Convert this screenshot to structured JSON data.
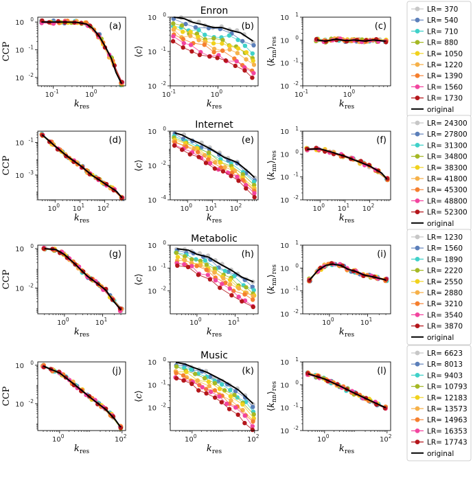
{
  "series_colors": [
    "#c7c7c7",
    "#5b7fba",
    "#3fd1c9",
    "#a5b825",
    "#f1d21d",
    "#f6b14a",
    "#f57f2e",
    "#f2459f",
    "#b4161b"
  ],
  "original_color": "#000000",
  "original_label": "original",
  "legends": [
    {
      "row": 0,
      "entries": [
        "LR= 370",
        "LR= 540",
        "LR= 710",
        "LR= 880",
        "LR= 1050",
        "LR= 1220",
        "LR= 1390",
        "LR= 1560",
        "LR= 1730"
      ]
    },
    {
      "row": 1,
      "entries": [
        "LR= 24300",
        "LR= 27800",
        "LR= 31300",
        "LR= 34800",
        "LR= 38300",
        "LR= 41800",
        "LR= 45300",
        "LR= 48800",
        "LR= 52300"
      ]
    },
    {
      "row": 2,
      "entries": [
        "LR= 1230",
        "LR= 1560",
        "LR= 1890",
        "LR= 2220",
        "LR= 2550",
        "LR= 2880",
        "LR= 3210",
        "LR= 3540",
        "LR= 3870"
      ]
    },
    {
      "row": 3,
      "entries": [
        "LR= 6623",
        "LR= 8013",
        "LR= 9403",
        "LR= 10793",
        "LR= 12183",
        "LR= 13573",
        "LR= 14963",
        "LR= 16353",
        "LR= 17743"
      ]
    }
  ],
  "chart_data": [
    {
      "panel": "(a)",
      "row": 0,
      "col": 0,
      "type": "scatter",
      "ylabel": "CCP",
      "xlabel": "k_res",
      "xscale": "log",
      "yscale": "log",
      "xlim": [
        0.04,
        7
      ],
      "ylim": [
        0.005,
        1.5
      ],
      "xticks": [
        {
          "v": 0.1,
          "label": "10^-1"
        },
        {
          "v": 1,
          "label": "10^0"
        }
      ],
      "yticks": [
        {
          "v": 0.01,
          "label": "10^-2"
        },
        {
          "v": 0.1,
          "label": "10^-1"
        },
        {
          "v": 1,
          "label": "10^0"
        }
      ],
      "original": {
        "x": [
          0.05,
          0.1,
          0.2,
          0.4,
          0.7,
          1.0,
          1.5,
          2,
          3,
          4,
          5.5
        ],
        "y": [
          1,
          1,
          1,
          0.97,
          0.85,
          0.6,
          0.3,
          0.15,
          0.05,
          0.015,
          0.006
        ]
      }
    },
    {
      "panel": "(b)",
      "row": 0,
      "col": 1,
      "title": "Enron",
      "type": "scatter",
      "ylabel": "⟨c⟩",
      "xlabel": "k_res",
      "xscale": "log",
      "yscale": "log",
      "xlim": [
        0.1,
        7
      ],
      "ylim": [
        0.01,
        1
      ],
      "xticks": [
        {
          "v": 0.1,
          "label": "10^-1"
        },
        {
          "v": 1,
          "label": "10^0"
        }
      ],
      "yticks": [
        {
          "v": 0.01,
          "label": "10^-2"
        },
        {
          "v": 0.1,
          "label": "10^-1"
        },
        {
          "v": 1,
          "label": "10^0"
        }
      ],
      "original": {
        "x": [
          0.12,
          0.2,
          0.3,
          0.5,
          0.8,
          1.2,
          2,
          3,
          5.5
        ],
        "y": [
          1,
          0.9,
          0.7,
          0.6,
          0.5,
          0.5,
          0.4,
          0.35,
          0.2
        ]
      }
    },
    {
      "panel": "(c)",
      "row": 0,
      "col": 2,
      "type": "scatter",
      "ylabel": "⟨k_nn⟩_res",
      "xlabel": "k_res",
      "xscale": "log",
      "yscale": "log",
      "xlim": [
        0.1,
        7
      ],
      "ylim": [
        0.01,
        10
      ],
      "xticks": [
        {
          "v": 0.1,
          "label": "10^-1"
        },
        {
          "v": 1,
          "label": "10^0"
        }
      ],
      "yticks": [
        {
          "v": 0.01,
          "label": "10^-2"
        },
        {
          "v": 0.1,
          "label": "10^-1"
        },
        {
          "v": 1,
          "label": "10^0"
        },
        {
          "v": 10,
          "label": "10^1"
        }
      ],
      "original": {
        "x": [
          0.2,
          0.3,
          0.5,
          0.8,
          1.2,
          2,
          3,
          5.5
        ],
        "y": [
          1,
          0.9,
          1.1,
          0.95,
          1.0,
          0.9,
          1.0,
          0.9
        ]
      }
    },
    {
      "panel": "(d)",
      "row": 1,
      "col": 0,
      "type": "scatter",
      "ylabel": "CCP",
      "xlabel": "k_res",
      "xscale": "log",
      "yscale": "log",
      "xlim": [
        0.2,
        700
      ],
      "ylim": [
        3e-05,
        0.5
      ],
      "xticks": [
        {
          "v": 1,
          "label": "10^0"
        },
        {
          "v": 10,
          "label": "10^1"
        },
        {
          "v": 100,
          "label": "10^2"
        }
      ],
      "yticks": [
        {
          "v": 0.001,
          "label": "10^-3"
        },
        {
          "v": 0.1,
          "label": "10^-1"
        }
      ],
      "original": {
        "x": [
          0.3,
          1,
          3,
          10,
          30,
          100,
          300,
          500
        ],
        "y": [
          0.3,
          0.06,
          0.015,
          0.004,
          0.001,
          0.0003,
          0.0001,
          4e-05
        ]
      }
    },
    {
      "panel": "(e)",
      "row": 1,
      "col": 1,
      "title": "Internet",
      "type": "scatter",
      "ylabel": "⟨c⟩",
      "xlabel": "k_res",
      "xscale": "log",
      "yscale": "log",
      "xlim": [
        0.2,
        700
      ],
      "ylim": [
        0.0001,
        1
      ],
      "xticks": [
        {
          "v": 1,
          "label": "10^0"
        },
        {
          "v": 10,
          "label": "10^1"
        },
        {
          "v": 100,
          "label": "10^2"
        }
      ],
      "yticks": [
        {
          "v": 0.0001,
          "label": "10^-4"
        },
        {
          "v": 0.01,
          "label": "10^-2"
        },
        {
          "v": 1,
          "label": "10^0"
        }
      ],
      "original": {
        "x": [
          0.3,
          0.6,
          1,
          3,
          10,
          30,
          100,
          300,
          500
        ],
        "y": [
          0.8,
          0.6,
          0.4,
          0.2,
          0.08,
          0.03,
          0.015,
          0.004,
          0.002
        ]
      }
    },
    {
      "panel": "(f)",
      "row": 1,
      "col": 2,
      "type": "scatter",
      "ylabel": "⟨k_nn⟩_res",
      "xlabel": "k_res",
      "xscale": "log",
      "yscale": "log",
      "xlim": [
        0.2,
        700
      ],
      "ylim": [
        0.01,
        10
      ],
      "xticks": [
        {
          "v": 1,
          "label": "10^0"
        },
        {
          "v": 10,
          "label": "10^1"
        },
        {
          "v": 100,
          "label": "10^2"
        }
      ],
      "yticks": [
        {
          "v": 0.01,
          "label": "10^-2"
        },
        {
          "v": 0.1,
          "label": "10^-1"
        },
        {
          "v": 1,
          "label": "10^0"
        },
        {
          "v": 10,
          "label": "10^1"
        }
      ],
      "original": {
        "x": [
          0.3,
          1,
          3,
          10,
          30,
          100,
          300,
          500
        ],
        "y": [
          1.6,
          1.7,
          1.2,
          0.8,
          0.5,
          0.3,
          0.15,
          0.08
        ]
      }
    },
    {
      "panel": "(g)",
      "row": 2,
      "col": 0,
      "type": "scatter",
      "ylabel": "CCP",
      "xlabel": "k_res",
      "xscale": "log",
      "yscale": "log",
      "xlim": [
        0.2,
        40
      ],
      "ylim": [
        0.0005,
        1.5
      ],
      "xticks": [
        {
          "v": 1,
          "label": "10^0"
        },
        {
          "v": 10,
          "label": "10^1"
        }
      ],
      "yticks": [
        {
          "v": 0.01,
          "label": "10^-2"
        },
        {
          "v": 1,
          "label": "10^0"
        }
      ],
      "original": {
        "x": [
          0.3,
          0.6,
          1,
          2,
          4,
          8,
          12,
          20,
          30
        ],
        "y": [
          1,
          0.9,
          0.5,
          0.15,
          0.04,
          0.015,
          0.008,
          0.002,
          0.0008
        ]
      }
    },
    {
      "panel": "(h)",
      "row": 2,
      "col": 1,
      "title": "Metabolic",
      "type": "scatter",
      "ylabel": "⟨c⟩",
      "xlabel": "k_res",
      "xscale": "log",
      "yscale": "log",
      "xlim": [
        0.2,
        40
      ],
      "ylim": [
        0.001,
        1
      ],
      "xticks": [
        {
          "v": 1,
          "label": "10^0"
        },
        {
          "v": 10,
          "label": "10^1"
        }
      ],
      "yticks": [
        {
          "v": 0.01,
          "label": "10^-2"
        },
        {
          "v": 0.1,
          "label": "10^-1"
        },
        {
          "v": 1,
          "label": "10^0"
        }
      ],
      "original": {
        "x": [
          0.3,
          0.6,
          1,
          2,
          4,
          8,
          15,
          30
        ],
        "y": [
          0.7,
          0.6,
          0.4,
          0.3,
          0.15,
          0.08,
          0.04,
          0.025
        ]
      }
    },
    {
      "panel": "(i)",
      "row": 2,
      "col": 2,
      "type": "scatter",
      "ylabel": "⟨k_nn⟩_res",
      "xlabel": "k_res",
      "xscale": "log",
      "yscale": "log",
      "xlim": [
        0.2,
        40
      ],
      "ylim": [
        0.01,
        10
      ],
      "xticks": [
        {
          "v": 1,
          "label": "10^0"
        },
        {
          "v": 10,
          "label": "10^1"
        }
      ],
      "yticks": [
        {
          "v": 0.01,
          "label": "10^-2"
        },
        {
          "v": 0.1,
          "label": "10^-1"
        },
        {
          "v": 1,
          "label": "10^0"
        },
        {
          "v": 10,
          "label": "10^1"
        }
      ],
      "original": {
        "x": [
          0.3,
          0.5,
          0.8,
          1.2,
          2,
          3,
          5,
          8,
          15,
          30
        ],
        "y": [
          0.3,
          0.8,
          1.3,
          1.5,
          1.3,
          0.9,
          0.7,
          0.5,
          0.4,
          0.3
        ]
      }
    },
    {
      "panel": "(j)",
      "row": 3,
      "col": 0,
      "type": "scatter",
      "ylabel": "CCP",
      "xlabel": "k_res",
      "xscale": "log",
      "yscale": "log",
      "xlim": [
        0.2,
        130
      ],
      "ylim": [
        0.0004,
        1.5
      ],
      "xticks": [
        {
          "v": 1,
          "label": "10^0"
        },
        {
          "v": 100,
          "label": "10^2"
        }
      ],
      "yticks": [
        {
          "v": 0.01,
          "label": "10^-2"
        },
        {
          "v": 1,
          "label": "10^0"
        }
      ],
      "original": {
        "x": [
          0.3,
          1,
          3,
          10,
          30,
          60,
          90
        ],
        "y": [
          0.9,
          0.4,
          0.1,
          0.02,
          0.005,
          0.0015,
          0.0006
        ]
      }
    },
    {
      "panel": "(k)",
      "row": 3,
      "col": 1,
      "title": "Music",
      "type": "scatter",
      "ylabel": "⟨c⟩",
      "xlabel": "k_res",
      "xscale": "log",
      "yscale": "log",
      "xlim": [
        0.2,
        130
      ],
      "ylim": [
        0.001,
        1
      ],
      "xticks": [
        {
          "v": 1,
          "label": "10^0"
        },
        {
          "v": 100,
          "label": "10^2"
        }
      ],
      "yticks": [
        {
          "v": 0.01,
          "label": "10^-2"
        },
        {
          "v": 0.1,
          "label": "10^-1"
        },
        {
          "v": 1,
          "label": "10^0"
        }
      ],
      "original": {
        "x": [
          0.3,
          0.6,
          1,
          3,
          10,
          30,
          90
        ],
        "y": [
          0.95,
          0.8,
          0.6,
          0.35,
          0.15,
          0.06,
          0.015
        ]
      }
    },
    {
      "panel": "(l)",
      "row": 3,
      "col": 2,
      "type": "scatter",
      "ylabel": "⟨k_nn⟩_res",
      "xlabel": "k_res",
      "xscale": "log",
      "yscale": "log",
      "xlim": [
        0.2,
        130
      ],
      "ylim": [
        0.01,
        10
      ],
      "xticks": [
        {
          "v": 1,
          "label": "10^0"
        },
        {
          "v": 100,
          "label": "10^2"
        }
      ],
      "yticks": [
        {
          "v": 0.01,
          "label": "10^-2"
        },
        {
          "v": 0.1,
          "label": "10^-1"
        },
        {
          "v": 1,
          "label": "10^0"
        },
        {
          "v": 10,
          "label": "10^1"
        }
      ],
      "original": {
        "x": [
          0.3,
          1,
          3,
          10,
          30,
          90
        ],
        "y": [
          3,
          1.8,
          0.9,
          0.4,
          0.2,
          0.1
        ]
      }
    }
  ]
}
